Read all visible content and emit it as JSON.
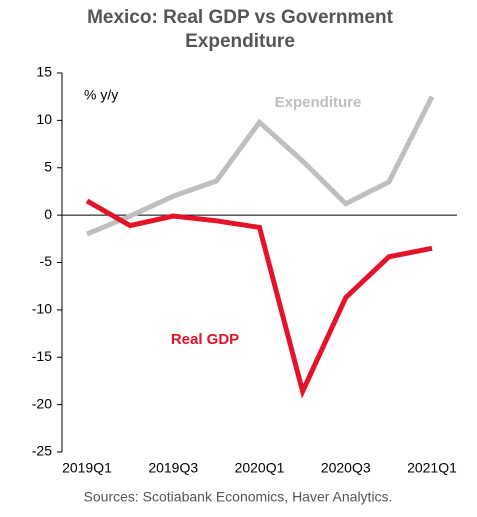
{
  "chart_data": {
    "type": "line",
    "title": "Mexico: Real GDP vs Government Expenditure",
    "y_label": "% y/y",
    "source": "Sources: Scotiabank Economics, Haver Analytics.",
    "categories": [
      "2019Q1",
      null,
      "2019Q3",
      null,
      "2020Q1",
      null,
      "2020Q3",
      null,
      "2021Q1"
    ],
    "series": [
      {
        "name": "Expenditure",
        "color": "#bfbfbf",
        "values": [
          -2.0,
          -0.1,
          2.0,
          3.6,
          9.8,
          5.7,
          1.2,
          3.5,
          12.5
        ]
      },
      {
        "name": "Real GDP",
        "color": "#e3142a",
        "values": [
          1.5,
          -1.1,
          -0.1,
          -0.6,
          -1.3,
          -18.6,
          -8.7,
          -4.4,
          -3.5
        ]
      }
    ],
    "ylim": [
      -25,
      15
    ],
    "yticks": [
      -25,
      -20,
      -15,
      -10,
      -5,
      0,
      5,
      10,
      15
    ],
    "grid": false
  }
}
